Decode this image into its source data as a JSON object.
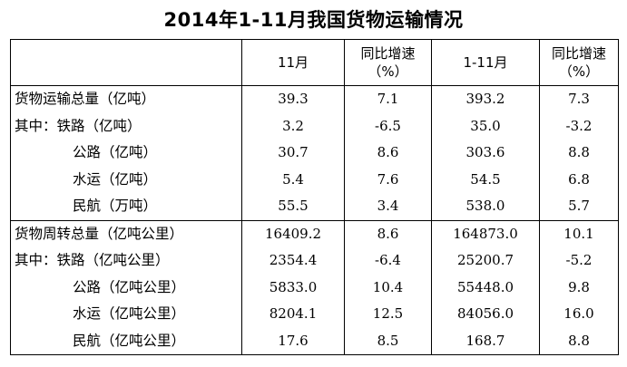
{
  "title": "2014年1-11月我国货物运输情况",
  "header": {
    "blank": "",
    "col_month": "11月",
    "col_yoy1_line1": "同比增速",
    "col_yoy1_line2": "（%）",
    "col_ytd": "1-11月",
    "col_yoy2_line1": "同比增速",
    "col_yoy2_line2": "（%）"
  },
  "rows": [
    {
      "label": "货物运输总量（亿吨）",
      "m": "39.3",
      "g1": "7.1",
      "ytd": "393.2",
      "g2": "7.3"
    },
    {
      "label": "其中：铁路（亿吨）",
      "m": "3.2",
      "g1": "-6.5",
      "ytd": "35.0",
      "g2": "-3.2"
    },
    {
      "label": "公路（亿吨）",
      "m": "30.7",
      "g1": "8.6",
      "ytd": "303.6",
      "g2": "8.8"
    },
    {
      "label": "水运（亿吨）",
      "m": "5.4",
      "g1": "7.6",
      "ytd": "54.5",
      "g2": "6.8"
    },
    {
      "label": "民航（万吨）",
      "m": "55.5",
      "g1": "3.4",
      "ytd": "538.0",
      "g2": "5.7"
    },
    {
      "label": "货物周转总量（亿吨公里）",
      "m": "16409.2",
      "g1": "8.6",
      "ytd": "164873.0",
      "g2": "10.1"
    },
    {
      "label": "其中：铁路（亿吨公里）",
      "m": "2354.4",
      "g1": "-6.4",
      "ytd": "25200.7",
      "g2": "-5.2"
    },
    {
      "label": "公路（亿吨公里）",
      "m": "5833.0",
      "g1": "10.4",
      "ytd": "55448.0",
      "g2": "9.8"
    },
    {
      "label": "水运（亿吨公里）",
      "m": "8204.1",
      "g1": "12.5",
      "ytd": "84056.0",
      "g2": "16.0"
    },
    {
      "label": "民航（亿吨公里）",
      "m": "17.6",
      "g1": "8.5",
      "ytd": "168.7",
      "g2": "8.8"
    }
  ]
}
